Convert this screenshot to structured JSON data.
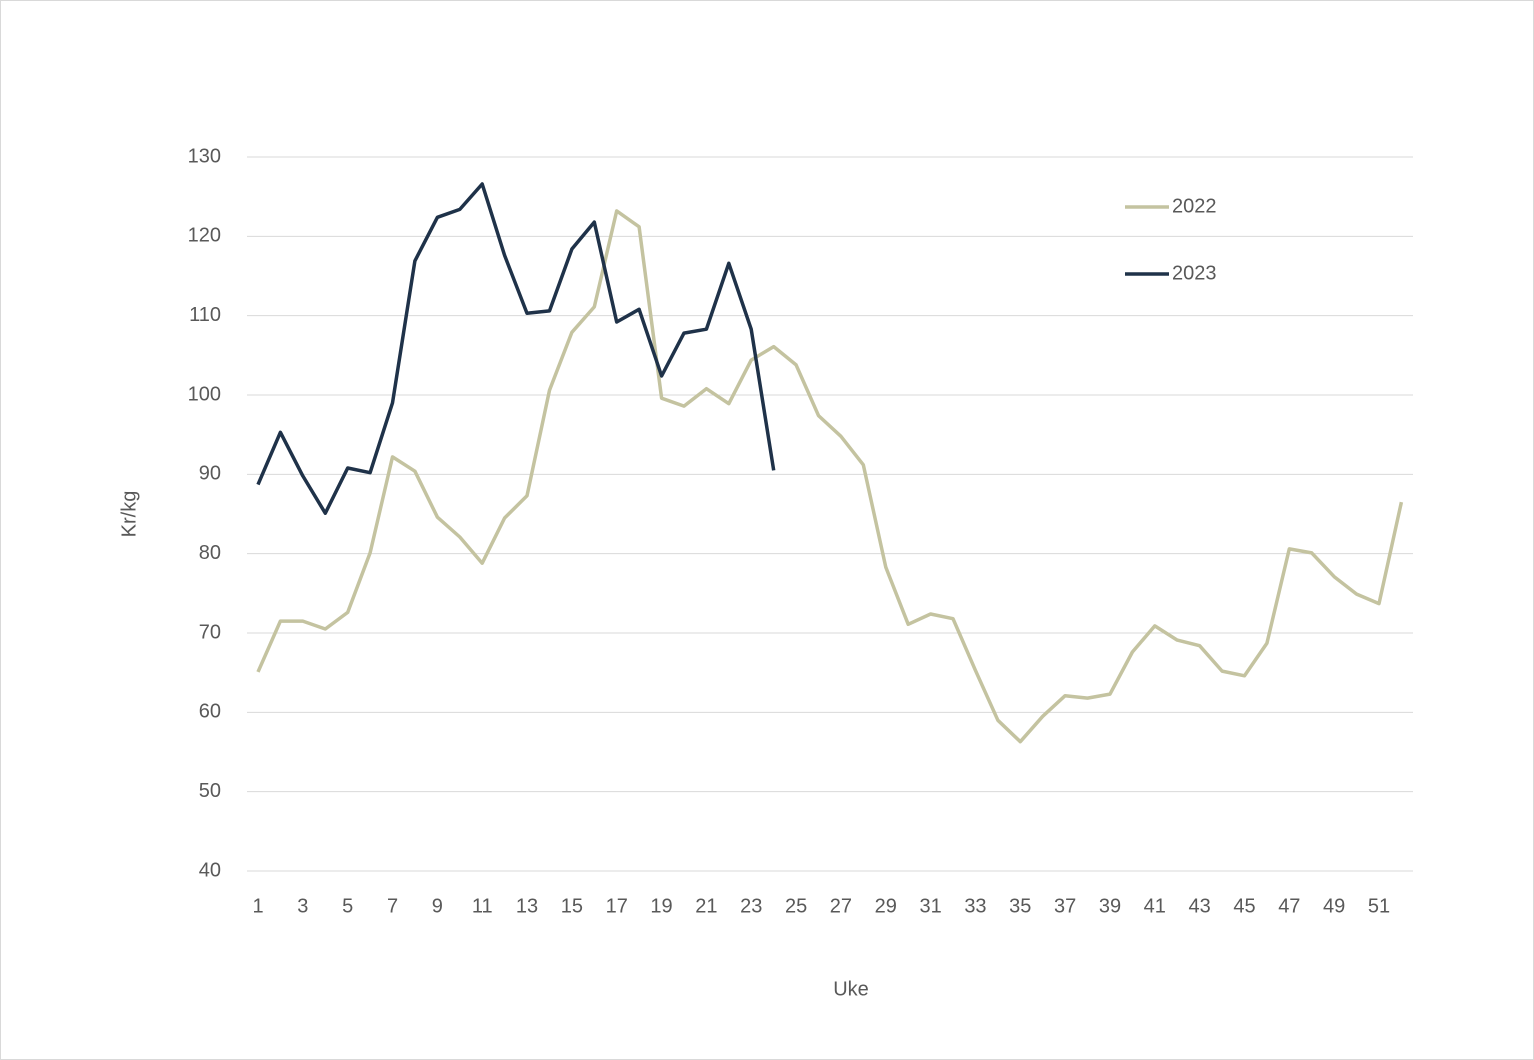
{
  "chart_data": {
    "type": "line",
    "x_label": "Uke",
    "y_label": "Kr/kg",
    "categories": [
      1,
      null,
      3,
      null,
      5,
      null,
      7,
      null,
      9,
      null,
      11,
      null,
      13,
      null,
      15,
      null,
      17,
      null,
      19,
      null,
      21,
      null,
      23,
      null,
      25,
      null,
      27,
      null,
      29,
      null,
      31,
      null,
      33,
      null,
      35,
      null,
      37,
      null,
      39,
      null,
      41,
      null,
      43,
      null,
      45,
      null,
      47,
      null,
      49,
      null,
      51,
      null
    ],
    "series": [
      {
        "name": "2022",
        "color": "#c4c3a0",
        "values": [
          65.1,
          71.5,
          71.5,
          70.5,
          72.6,
          80.1,
          92.2,
          90.4,
          84.6,
          82.1,
          78.8,
          84.5,
          87.3,
          100.6,
          107.9,
          111.1,
          123.2,
          121.2,
          99.6,
          98.6,
          100.8,
          98.9,
          104.4,
          106.1,
          103.8,
          97.4,
          94.8,
          91.2,
          78.3,
          71.1,
          72.4,
          71.8,
          65.3,
          59.0,
          56.3,
          59.5,
          62.1,
          61.8,
          62.3,
          67.6,
          70.9,
          69.1,
          68.4,
          65.2,
          64.6,
          68.7,
          80.6,
          80.1,
          77.1,
          74.9,
          73.7,
          86.5
        ]
      },
      {
        "name": "2023",
        "color": "#1f3249",
        "values": [
          88.7,
          95.3,
          89.8,
          85.1,
          90.8,
          90.2,
          99.0,
          116.9,
          122.4,
          123.4,
          126.6,
          117.6,
          110.3,
          110.6,
          118.4,
          121.8,
          109.2,
          110.8,
          102.4,
          107.8,
          108.3,
          116.6,
          108.3,
          90.5,
          null,
          null,
          null,
          null,
          null,
          null,
          null,
          null,
          null,
          null,
          null,
          null,
          null,
          null,
          null,
          null,
          null,
          null,
          null,
          null,
          null,
          null,
          null,
          null,
          null,
          null,
          null,
          null
        ]
      }
    ],
    "ylim": [
      40,
      130
    ],
    "yticks": [
      40,
      50,
      60,
      70,
      80,
      90,
      100,
      110,
      120,
      130
    ],
    "grid": true,
    "legend": "upper right"
  }
}
